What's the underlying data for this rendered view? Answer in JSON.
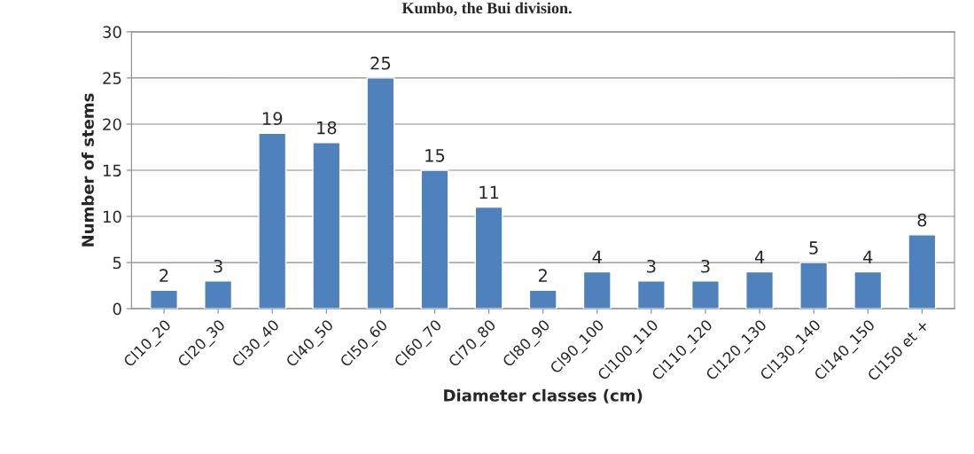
{
  "chart_data": {
    "type": "bar",
    "title": "Kumbo, the Bui division.",
    "xlabel": "Diameter classes (cm)",
    "ylabel": "Number of stems",
    "categories": [
      "Cl10_20",
      "Cl20_30",
      "Cl30_40",
      "Cl40_50",
      "Cl50_60",
      "Cl60_70",
      "Cl70_80",
      "Cl80_90",
      "Cl90_100",
      "Cl100_110",
      "Cl110_120",
      "Cl120_130",
      "Cl130_140",
      "Cl140_150",
      "Cl150 et +"
    ],
    "values": [
      2,
      3,
      19,
      18,
      25,
      15,
      11,
      2,
      4,
      3,
      3,
      4,
      5,
      4,
      8
    ],
    "color": "#4f81bd",
    "ylim": [
      0,
      30
    ],
    "yticks": [
      0,
      5,
      10,
      15,
      20,
      25,
      30
    ],
    "grid": "y",
    "data_labels": true
  }
}
